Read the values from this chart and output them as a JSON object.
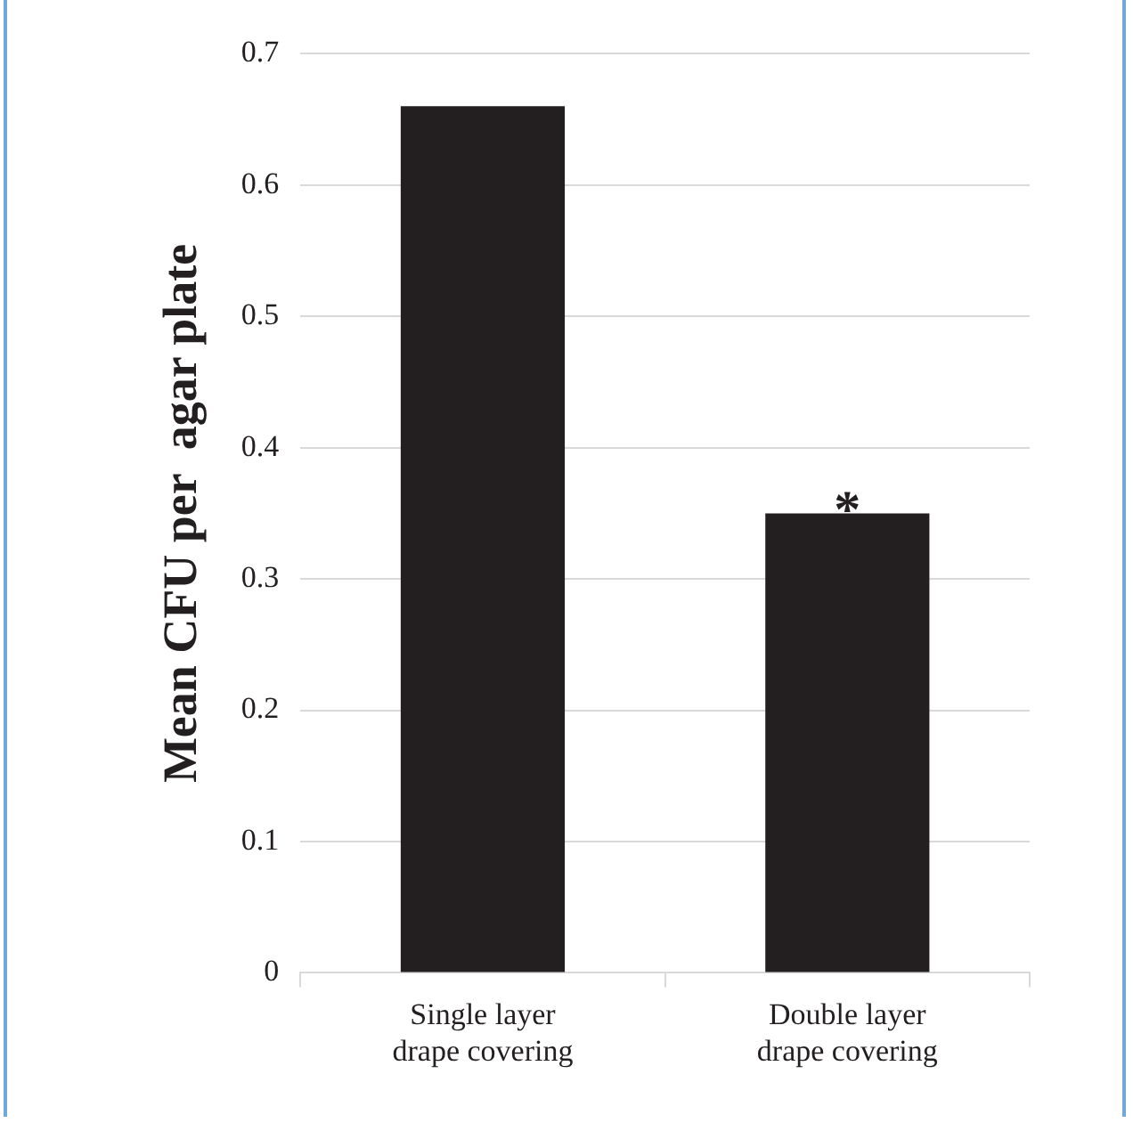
{
  "chart_data": {
    "type": "bar",
    "ylabel": "Mean CFU per  agar plate",
    "categories": [
      "Single layer drape covering",
      "Double layer drape covering"
    ],
    "values": [
      0.66,
      0.35
    ],
    "color": "#231f20",
    "ylim": [
      0,
      0.7
    ],
    "yticks": [
      0,
      0.1,
      0.2,
      0.3,
      0.4,
      0.5,
      0.6,
      0.7
    ],
    "grid": "y",
    "legend": false,
    "annotations": [
      {
        "text": "*",
        "x": "Double layer drape covering",
        "y": 0.35
      }
    ]
  }
}
